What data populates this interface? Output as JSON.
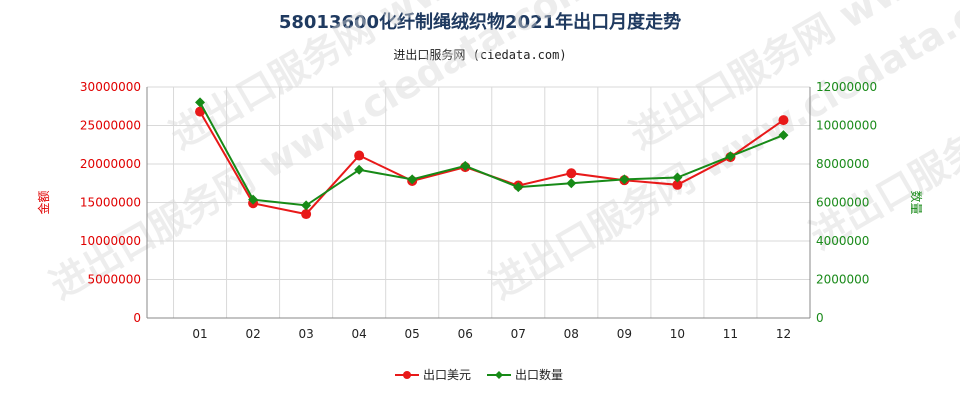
{
  "title": "58013600化纤制绳绒织物2021年出口月度走势",
  "subtitle": "进出口服务网 (ciedata.com)",
  "watermark": "进出口服务网 www.ciedata.com",
  "colors": {
    "series_usd": "#e81919",
    "series_qty": "#178a17",
    "grid": "#d9d9d9",
    "axis": "#888888"
  },
  "chart_data": {
    "type": "line",
    "categories": [
      "01",
      "02",
      "03",
      "04",
      "05",
      "06",
      "07",
      "08",
      "09",
      "10",
      "11",
      "12"
    ],
    "ylabel_left": "金额",
    "ylabel_right": "数量",
    "y_left_ticks": [
      "0",
      "5000000",
      "10000000",
      "15000000",
      "20000000",
      "25000000",
      "30000000"
    ],
    "y_right_ticks": [
      "0",
      "2000000",
      "4000000",
      "6000000",
      "8000000",
      "10000000",
      "12000000"
    ],
    "ylim_left": [
      0,
      30000000
    ],
    "ylim_right": [
      0,
      12000000
    ],
    "grid": true,
    "legend_position": "bottom-center",
    "series": [
      {
        "name": "出口美元",
        "axis": "left",
        "marker": "circle",
        "values": [
          26800000,
          14900000,
          13500000,
          21100000,
          17800000,
          19600000,
          17200000,
          18800000,
          17900000,
          17300000,
          20900000,
          25700000
        ]
      },
      {
        "name": "出口数量",
        "axis": "right",
        "marker": "diamond",
        "values": [
          11200000,
          6150000,
          5850000,
          7700000,
          7200000,
          7900000,
          6800000,
          7000000,
          7200000,
          7300000,
          8400000,
          9500000
        ]
      }
    ]
  }
}
